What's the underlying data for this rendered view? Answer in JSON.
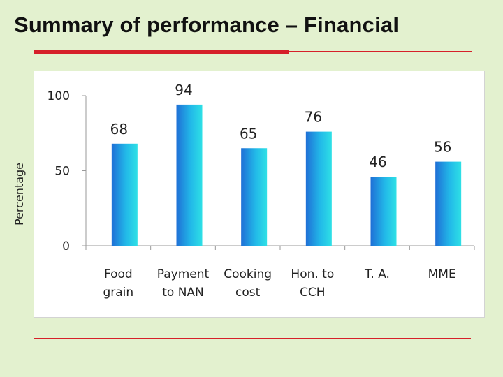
{
  "title": "Summary of performance – Financial",
  "colors": {
    "background": "#e3f1cf",
    "accent_rule": "#d6202a",
    "bar_edge": "#1f6fd6",
    "bar_center": "#2ee0e6"
  },
  "chart_data": {
    "type": "bar",
    "title": "",
    "xlabel": "",
    "ylabel": "Percentage",
    "ylim": [
      0,
      100
    ],
    "yticks": [
      "0",
      "50",
      "100"
    ],
    "grid": false,
    "categories": [
      [
        "Food",
        "grain"
      ],
      [
        "Payment",
        "to NAN"
      ],
      [
        "Cooking",
        "cost"
      ],
      [
        "Hon. to",
        "CCH"
      ],
      [
        "T. A."
      ],
      [
        "MME"
      ]
    ],
    "values": [
      68,
      94,
      65,
      76,
      46,
      56
    ],
    "data_labels": [
      "68",
      "94",
      "65",
      "76",
      "46",
      "56"
    ]
  }
}
